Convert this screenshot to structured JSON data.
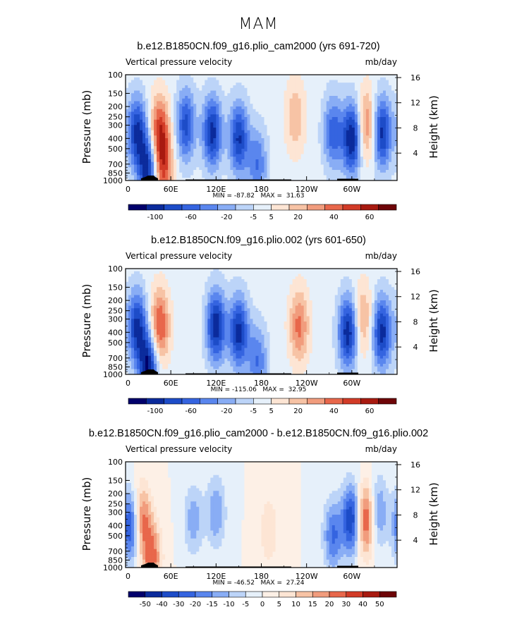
{
  "figure_title": "MAM",
  "chart_data": [
    {
      "type": "heatmap",
      "title": "b.e12.B1850CN.f09_g16.plio_cam2000 (yrs 691-720)",
      "left_subtitle": "Vertical pressure velocity",
      "units": "mb/day",
      "ylabel": "Pressure (mb)",
      "ylabel_right": "Height (km)",
      "x_ticks": [
        "0",
        "60E",
        "120E",
        "180",
        "120W",
        "60W"
      ],
      "y_ticks": [
        "100",
        "150",
        "200",
        "250",
        "300",
        "400",
        "500",
        "700",
        "850",
        "1000"
      ],
      "y_right_ticks": [
        "16",
        "12",
        "8",
        "4"
      ],
      "ylim": [
        1000,
        100
      ],
      "xlim": [
        0,
        360
      ],
      "min_max_label": "MIN = -87.82   MAX =  31.63",
      "colorbar_labels": [
        "-100",
        "-60",
        "-20",
        "-5",
        "5",
        "20",
        "40",
        "60"
      ],
      "colorbar_levels": 15,
      "features": [
        {
          "lon": 15,
          "p": 350,
          "sign": -1,
          "amp": 0.8
        },
        {
          "lon": 30,
          "p": 800,
          "sign": -1,
          "amp": 0.9
        },
        {
          "lon": 45,
          "p": 350,
          "sign": 1,
          "amp": 0.75
        },
        {
          "lon": 50,
          "p": 800,
          "sign": 1,
          "amp": 0.6
        },
        {
          "lon": 80,
          "p": 300,
          "sign": -1,
          "amp": 0.7
        },
        {
          "lon": 115,
          "p": 350,
          "sign": -1,
          "amp": 0.85
        },
        {
          "lon": 150,
          "p": 400,
          "sign": -1,
          "amp": 0.8
        },
        {
          "lon": 175,
          "p": 700,
          "sign": -1,
          "amp": 0.5
        },
        {
          "lon": 225,
          "p": 250,
          "sign": 1,
          "amp": 0.35
        },
        {
          "lon": 275,
          "p": 350,
          "sign": -1,
          "amp": 0.6
        },
        {
          "lon": 300,
          "p": 400,
          "sign": -1,
          "amp": 0.95
        },
        {
          "lon": 320,
          "p": 300,
          "sign": 1,
          "amp": 0.55
        },
        {
          "lon": 340,
          "p": 350,
          "sign": -1,
          "amp": 0.85
        }
      ]
    },
    {
      "type": "heatmap",
      "title": "b.e12.B1850CN.f09_g16.plio.002 (yrs 601-650)",
      "left_subtitle": "Vertical pressure velocity",
      "units": "mb/day",
      "ylabel": "Pressure (mb)",
      "ylabel_right": "Height (km)",
      "x_ticks": [
        "0",
        "60E",
        "120E",
        "180",
        "120W",
        "60W"
      ],
      "y_ticks": [
        "100",
        "150",
        "200",
        "250",
        "300",
        "400",
        "500",
        "700",
        "850",
        "1000"
      ],
      "y_right_ticks": [
        "16",
        "12",
        "8",
        "4"
      ],
      "ylim": [
        1000,
        100
      ],
      "xlim": [
        0,
        360
      ],
      "min_max_label": "MIN = -115.06   MAX =  32.95",
      "colorbar_labels": [
        "-100",
        "-60",
        "-20",
        "-5",
        "5",
        "20",
        "40",
        "60"
      ],
      "colorbar_levels": 15,
      "features": [
        {
          "lon": 15,
          "p": 350,
          "sign": -1,
          "amp": 0.8
        },
        {
          "lon": 30,
          "p": 850,
          "sign": -1,
          "amp": 0.95
        },
        {
          "lon": 45,
          "p": 350,
          "sign": 1,
          "amp": 0.7
        },
        {
          "lon": 120,
          "p": 350,
          "sign": -1,
          "amp": 0.9
        },
        {
          "lon": 150,
          "p": 400,
          "sign": -1,
          "amp": 0.85
        },
        {
          "lon": 175,
          "p": 750,
          "sign": -1,
          "amp": 0.5
        },
        {
          "lon": 230,
          "p": 350,
          "sign": 1,
          "amp": 0.55
        },
        {
          "lon": 295,
          "p": 400,
          "sign": -1,
          "amp": 0.9
        },
        {
          "lon": 315,
          "p": 300,
          "sign": 1,
          "amp": 0.4
        },
        {
          "lon": 340,
          "p": 400,
          "sign": -1,
          "amp": 0.85
        }
      ]
    },
    {
      "type": "heatmap",
      "title": "b.e12.B1850CN.f09_g16.plio_cam2000 - b.e12.B1850CN.f09_g16.plio.002",
      "left_subtitle": "Vertical pressure velocity",
      "units": "mb/day",
      "ylabel": "Pressure (mb)",
      "ylabel_right": "Height (km)",
      "x_ticks": [
        "0",
        "60E",
        "120E",
        "180",
        "120W",
        "60W"
      ],
      "y_ticks": [
        "100",
        "150",
        "200",
        "250",
        "300",
        "400",
        "500",
        "700",
        "850",
        "1000"
      ],
      "y_right_ticks": [
        "16",
        "12",
        "8",
        "4"
      ],
      "ylim": [
        1000,
        100
      ],
      "xlim": [
        0,
        360
      ],
      "min_max_label": "MIN = -46.52   MAX =  27.24",
      "colorbar_labels": [
        "-50",
        "-40",
        "-30",
        "-20",
        "-15",
        "-10",
        "-5",
        "0",
        "5",
        "10",
        "15",
        "20",
        "30",
        "40",
        "50"
      ],
      "colorbar_levels": 16,
      "features": [
        {
          "lon": 8,
          "p": 400,
          "sign": -1,
          "amp": 0.85
        },
        {
          "lon": 20,
          "p": 350,
          "sign": 1,
          "amp": 0.7
        },
        {
          "lon": 35,
          "p": 800,
          "sign": 1,
          "amp": 0.6
        },
        {
          "lon": 90,
          "p": 350,
          "sign": -1,
          "amp": 0.35
        },
        {
          "lon": 120,
          "p": 300,
          "sign": -1,
          "amp": 0.4
        },
        {
          "lon": 190,
          "p": 450,
          "sign": 1,
          "amp": 0.25
        },
        {
          "lon": 275,
          "p": 500,
          "sign": -1,
          "amp": 0.55
        },
        {
          "lon": 300,
          "p": 350,
          "sign": -1,
          "amp": 0.85
        },
        {
          "lon": 318,
          "p": 350,
          "sign": 1,
          "amp": 0.8
        },
        {
          "lon": 335,
          "p": 300,
          "sign": -1,
          "amp": 0.45
        }
      ]
    }
  ]
}
